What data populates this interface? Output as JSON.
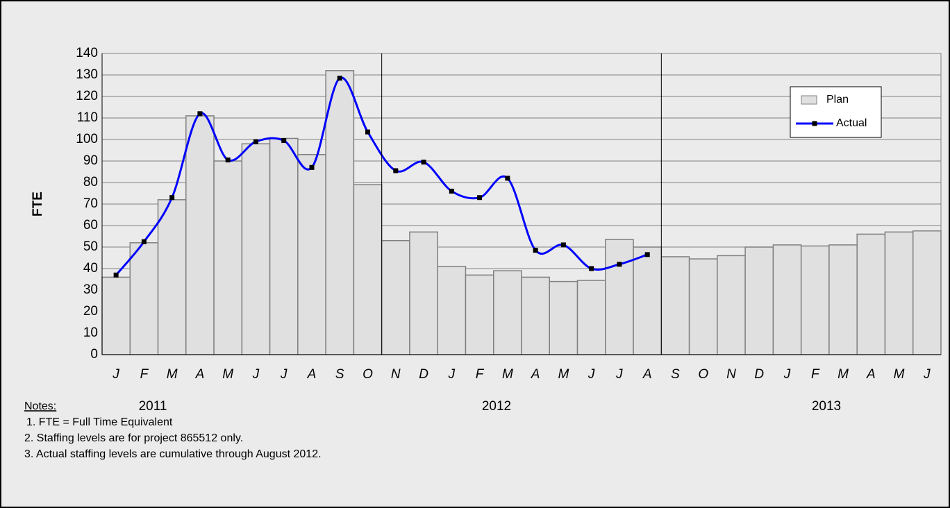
{
  "chart_data": {
    "type": "bar_line",
    "y_label": "FTE",
    "categories": [
      "J",
      "F",
      "M",
      "A",
      "M",
      "J",
      "J",
      "A",
      "S",
      "O",
      "N",
      "D",
      "J",
      "F",
      "M",
      "A",
      "M",
      "J",
      "J",
      "A",
      "S",
      "O",
      "N",
      "D",
      "J",
      "F",
      "M",
      "A",
      "M",
      "J"
    ],
    "x_groups": [
      "2011",
      "2012",
      "2013"
    ],
    "series": [
      {
        "name": "Plan",
        "type": "bar",
        "color": "#e0e0e0",
        "values": [
          36,
          52,
          72,
          111,
          90,
          98,
          100.5,
          93,
          132,
          79,
          53,
          57,
          41,
          37,
          39,
          36,
          34,
          34.5,
          53.5,
          50,
          45.5,
          44.5,
          46,
          50,
          51,
          50.5,
          51,
          56,
          57,
          57.5
        ]
      },
      {
        "name": "Actual",
        "type": "line",
        "color": "#0000ff",
        "values": [
          37,
          52.5,
          73,
          112,
          90.5,
          99,
          99.5,
          87,
          128.5,
          103.5,
          85.5,
          89.5,
          76,
          73,
          82,
          48.5,
          51,
          40,
          42,
          46.5,
          null,
          null,
          null,
          null,
          null,
          null,
          null,
          null,
          null,
          null
        ]
      }
    ],
    "ylim": [
      0,
      140
    ],
    "yticks": [
      0,
      10,
      20,
      30,
      40,
      50,
      60,
      70,
      80,
      90,
      100,
      110,
      120,
      130,
      140
    ],
    "grid": true,
    "legend": "upper right",
    "notes": {
      "title": "Notes:",
      "items": [
        "1. FTE = Full Time Equivalent",
        "2. Staffing levels are for project 865512 only.",
        "3. Actual staffing levels are cumulative through August 2012."
      ]
    }
  }
}
